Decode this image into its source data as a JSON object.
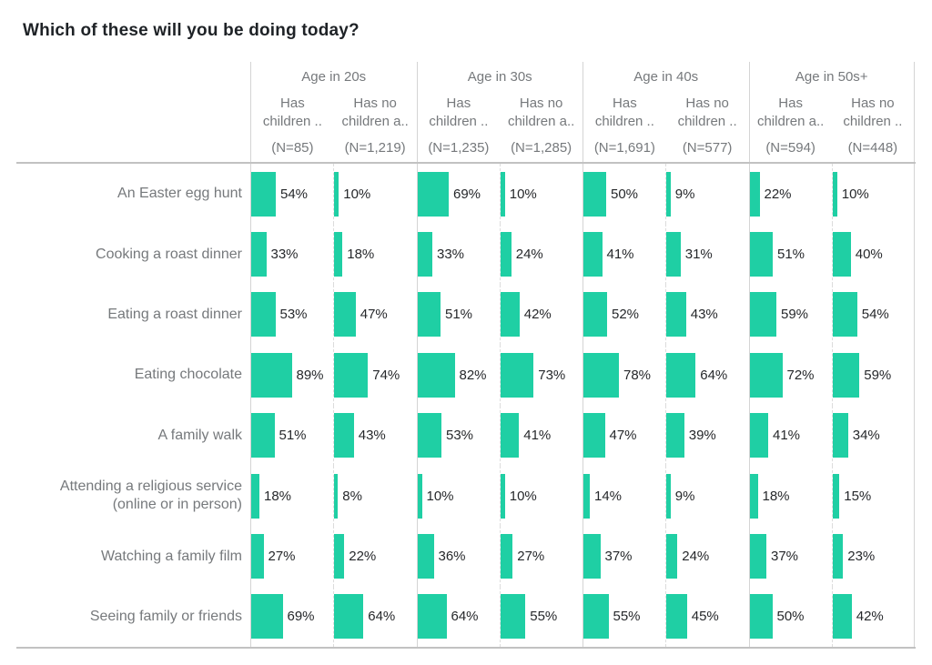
{
  "title": "Which of these will you be doing today?",
  "colors": {
    "bar": "#1fcfa4",
    "title_text": "#1e2226",
    "header_text": "#76797c",
    "row_label_text": "#76797c",
    "value_text": "#26282b",
    "solid_line": "#d4d4d4",
    "dashed_line": "#dcdcdc",
    "axis_line": "#c2c2c2"
  },
  "chart_data": {
    "type": "bar",
    "title": "Which of these will you be doing today?",
    "unit": "%",
    "value_range": [
      0,
      100
    ],
    "value_label_format": "{v}%",
    "orientation": "horizontal",
    "legend": "none",
    "layout": "small-multiple bar table: 4 column groups x 2 sub-columns, 8 category rows; solid separators between groups, dashed separators within groups",
    "column_groups": [
      {
        "label": "Age in 20s",
        "columns": [
          {
            "header": "Has children ..",
            "header_lines": [
              "Has",
              "children .."
            ],
            "n_label": "(N=85)"
          },
          {
            "header": "Has no children a..",
            "header_lines": [
              "Has no",
              "children a.."
            ],
            "n_label": "(N=1,219)"
          }
        ]
      },
      {
        "label": "Age in 30s",
        "columns": [
          {
            "header": "Has children ..",
            "header_lines": [
              "Has",
              "children .."
            ],
            "n_label": "(N=1,235)"
          },
          {
            "header": "Has no children a..",
            "header_lines": [
              "Has no",
              "children a.."
            ],
            "n_label": "(N=1,285)"
          }
        ]
      },
      {
        "label": "Age in 40s",
        "columns": [
          {
            "header": "Has children ..",
            "header_lines": [
              "Has",
              "children .."
            ],
            "n_label": "(N=1,691)"
          },
          {
            "header": "Has no children ..",
            "header_lines": [
              "Has no",
              "children .."
            ],
            "n_label": "(N=577)"
          }
        ]
      },
      {
        "label": "Age in 50s+",
        "columns": [
          {
            "header": "Has children a..",
            "header_lines": [
              "Has",
              "children a.."
            ],
            "n_label": "(N=594)"
          },
          {
            "header": "Has no children ..",
            "header_lines": [
              "Has no",
              "children .."
            ],
            "n_label": "(N=448)"
          }
        ]
      }
    ],
    "rows": [
      {
        "label": "An Easter egg hunt",
        "values": [
          54,
          10,
          69,
          10,
          50,
          9,
          22,
          10
        ]
      },
      {
        "label": "Cooking a roast dinner",
        "values": [
          33,
          18,
          33,
          24,
          41,
          31,
          51,
          40
        ]
      },
      {
        "label": "Eating a roast dinner",
        "values": [
          53,
          47,
          51,
          42,
          52,
          43,
          59,
          54
        ]
      },
      {
        "label": "Eating chocolate",
        "values": [
          89,
          74,
          82,
          73,
          78,
          64,
          72,
          59
        ]
      },
      {
        "label": "A family walk",
        "values": [
          51,
          43,
          53,
          41,
          47,
          39,
          41,
          34
        ]
      },
      {
        "label": "Attending a religious service (online or in person)",
        "values": [
          18,
          8,
          10,
          10,
          14,
          9,
          18,
          15
        ]
      },
      {
        "label": "Watching a family film",
        "values": [
          27,
          22,
          36,
          27,
          37,
          24,
          37,
          23
        ]
      },
      {
        "label": "Seeing family or friends",
        "values": [
          69,
          64,
          64,
          55,
          55,
          45,
          50,
          42
        ]
      }
    ]
  }
}
